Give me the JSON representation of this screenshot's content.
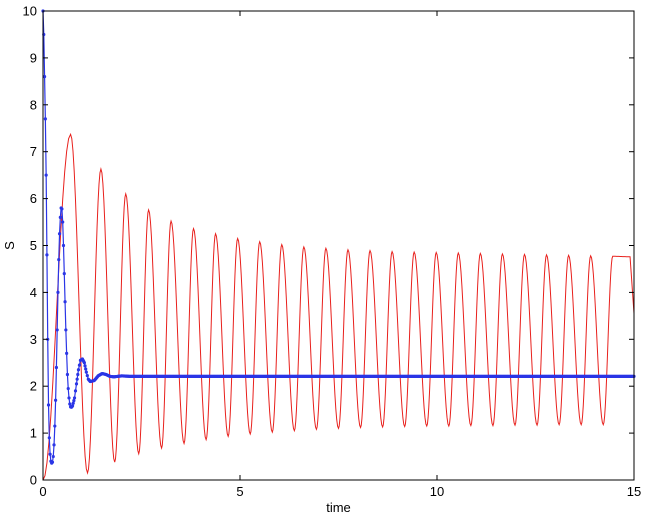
{
  "chart_data": {
    "type": "line",
    "title": "",
    "xlabel": "time",
    "ylabel": "S",
    "xlim": [
      0,
      15
    ],
    "ylim": [
      0,
      10
    ],
    "xticks": [
      0,
      5,
      10,
      15
    ],
    "yticks": [
      0,
      1,
      2,
      3,
      4,
      5,
      6,
      7,
      8,
      9,
      10
    ],
    "xtick_labels": [
      "0",
      "5",
      "10",
      "15"
    ],
    "ytick_labels": [
      "0",
      "1",
      "2",
      "3",
      "4",
      "5",
      "6",
      "7",
      "8",
      "9",
      "10"
    ],
    "grid": false,
    "series": [
      {
        "color": "#e8201c",
        "style": "line",
        "peaks": [
          [
            0.7,
            7.37
          ],
          [
            1.47,
            6.63
          ],
          [
            2.1,
            6.1
          ],
          [
            2.68,
            5.76
          ],
          [
            3.25,
            5.52
          ],
          [
            3.82,
            5.36
          ],
          [
            4.38,
            5.25
          ],
          [
            4.94,
            5.15
          ],
          [
            5.5,
            5.08
          ],
          [
            6.06,
            5.02
          ],
          [
            6.62,
            4.97
          ],
          [
            7.18,
            4.94
          ],
          [
            7.74,
            4.91
          ],
          [
            8.3,
            4.89
          ],
          [
            8.86,
            4.87
          ],
          [
            9.42,
            4.86
          ],
          [
            9.98,
            4.85
          ],
          [
            10.54,
            4.84
          ],
          [
            11.1,
            4.83
          ],
          [
            11.66,
            4.82
          ],
          [
            12.22,
            4.81
          ],
          [
            12.78,
            4.8
          ],
          [
            13.34,
            4.79
          ],
          [
            13.9,
            4.78
          ],
          [
            14.46,
            4.77
          ],
          [
            14.9,
            4.76
          ]
        ],
        "troughs": [
          [
            0.0,
            0.0
          ],
          [
            1.13,
            0.15
          ],
          [
            1.82,
            0.38
          ],
          [
            2.43,
            0.56
          ],
          [
            3.01,
            0.68
          ],
          [
            3.58,
            0.78
          ],
          [
            4.14,
            0.86
          ],
          [
            4.7,
            0.93
          ],
          [
            5.26,
            0.98
          ],
          [
            5.82,
            1.02
          ],
          [
            6.38,
            1.05
          ],
          [
            6.94,
            1.08
          ],
          [
            7.5,
            1.1
          ],
          [
            8.06,
            1.12
          ],
          [
            8.62,
            1.13
          ],
          [
            9.18,
            1.14
          ],
          [
            9.74,
            1.15
          ],
          [
            10.3,
            1.15
          ],
          [
            10.86,
            1.16
          ],
          [
            11.42,
            1.16
          ],
          [
            11.98,
            1.17
          ],
          [
            12.54,
            1.17
          ],
          [
            13.1,
            1.18
          ],
          [
            13.66,
            1.18
          ],
          [
            14.22,
            1.18
          ]
        ],
        "end": [
          15.0,
          3.55
        ]
      },
      {
        "color": "#2a35e6",
        "style": "line-markers",
        "points": [
          [
            0.0,
            10.0
          ],
          [
            0.02,
            9.5
          ],
          [
            0.04,
            8.6
          ],
          [
            0.06,
            7.7
          ],
          [
            0.08,
            6.5
          ],
          [
            0.1,
            4.8
          ],
          [
            0.12,
            3.0
          ],
          [
            0.14,
            1.6
          ],
          [
            0.16,
            0.9
          ],
          [
            0.18,
            0.55
          ],
          [
            0.2,
            0.4
          ],
          [
            0.22,
            0.36
          ],
          [
            0.24,
            0.38
          ],
          [
            0.26,
            0.5
          ],
          [
            0.28,
            0.75
          ],
          [
            0.3,
            1.15
          ],
          [
            0.32,
            1.7
          ],
          [
            0.34,
            2.4
          ],
          [
            0.36,
            3.2
          ],
          [
            0.38,
            4.0
          ],
          [
            0.4,
            4.7
          ],
          [
            0.42,
            5.25
          ],
          [
            0.44,
            5.6
          ],
          [
            0.46,
            5.8
          ],
          [
            0.48,
            5.78
          ],
          [
            0.5,
            5.5
          ],
          [
            0.52,
            5.0
          ],
          [
            0.54,
            4.4
          ],
          [
            0.56,
            3.8
          ],
          [
            0.58,
            3.2
          ],
          [
            0.6,
            2.7
          ],
          [
            0.62,
            2.25
          ],
          [
            0.64,
            1.95
          ],
          [
            0.66,
            1.75
          ],
          [
            0.68,
            1.62
          ],
          [
            0.7,
            1.56
          ],
          [
            0.72,
            1.55
          ],
          [
            0.75,
            1.58
          ],
          [
            0.8,
            1.75
          ],
          [
            0.85,
            2.05
          ],
          [
            0.9,
            2.35
          ],
          [
            0.95,
            2.55
          ],
          [
            1.0,
            2.58
          ],
          [
            1.05,
            2.5
          ],
          [
            1.1,
            2.3
          ],
          [
            1.15,
            2.15
          ],
          [
            1.2,
            2.1
          ],
          [
            1.3,
            2.12
          ],
          [
            1.4,
            2.22
          ],
          [
            1.5,
            2.27
          ],
          [
            1.6,
            2.25
          ],
          [
            1.7,
            2.21
          ],
          [
            1.8,
            2.2
          ],
          [
            2.0,
            2.22
          ],
          [
            2.2,
            2.21
          ],
          [
            15.0,
            2.21
          ]
        ]
      }
    ]
  }
}
